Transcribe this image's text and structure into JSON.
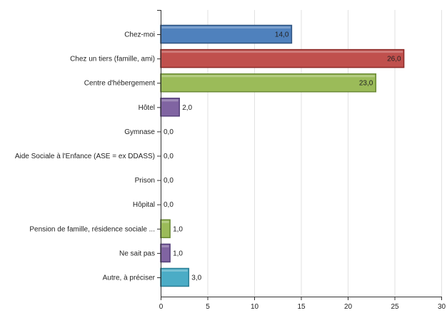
{
  "chart_data": {
    "type": "bar",
    "orientation": "horizontal",
    "title": "",
    "xlabel": "",
    "ylabel": "",
    "categories": [
      "Chez-moi",
      "Chez un tiers (famille, ami)",
      "Centre d'hébergement",
      "Hôtel",
      "Gymnase",
      "Aide Sociale à l'Enfance (ASE = ex DDASS)",
      "Prison",
      "Hôpital",
      "Pension de famille, résidence sociale ...",
      "Ne sait pas",
      "Autre, à préciser"
    ],
    "values": [
      14.0,
      26.0,
      23.0,
      2.0,
      0.0,
      0.0,
      0.0,
      0.0,
      1.0,
      1.0,
      3.0
    ],
    "value_labels": [
      "14,0",
      "26,0",
      "23,0",
      "2,0",
      "0,0",
      "0,0",
      "0,0",
      "0,0",
      "1,0",
      "1,0",
      "3,0"
    ],
    "xlim": [
      0,
      30
    ],
    "xticks": [
      0,
      5,
      10,
      15,
      20,
      25,
      30
    ],
    "grid": true,
    "legend": "none",
    "colors": [
      "#4f81bd",
      "#c0504d",
      "#9bbb59",
      "#8064a2",
      "#4f81bd",
      "#4f81bd",
      "#4f81bd",
      "#4f81bd",
      "#9bbb59",
      "#8064a2",
      "#4bacc6"
    ],
    "border_colors": [
      "#2f5380",
      "#8b2a27",
      "#6a8a34",
      "#55407a",
      "#2f5380",
      "#2f5380",
      "#2f5380",
      "#2f5380",
      "#6a8a34",
      "#55407a",
      "#2b7f96"
    ]
  }
}
